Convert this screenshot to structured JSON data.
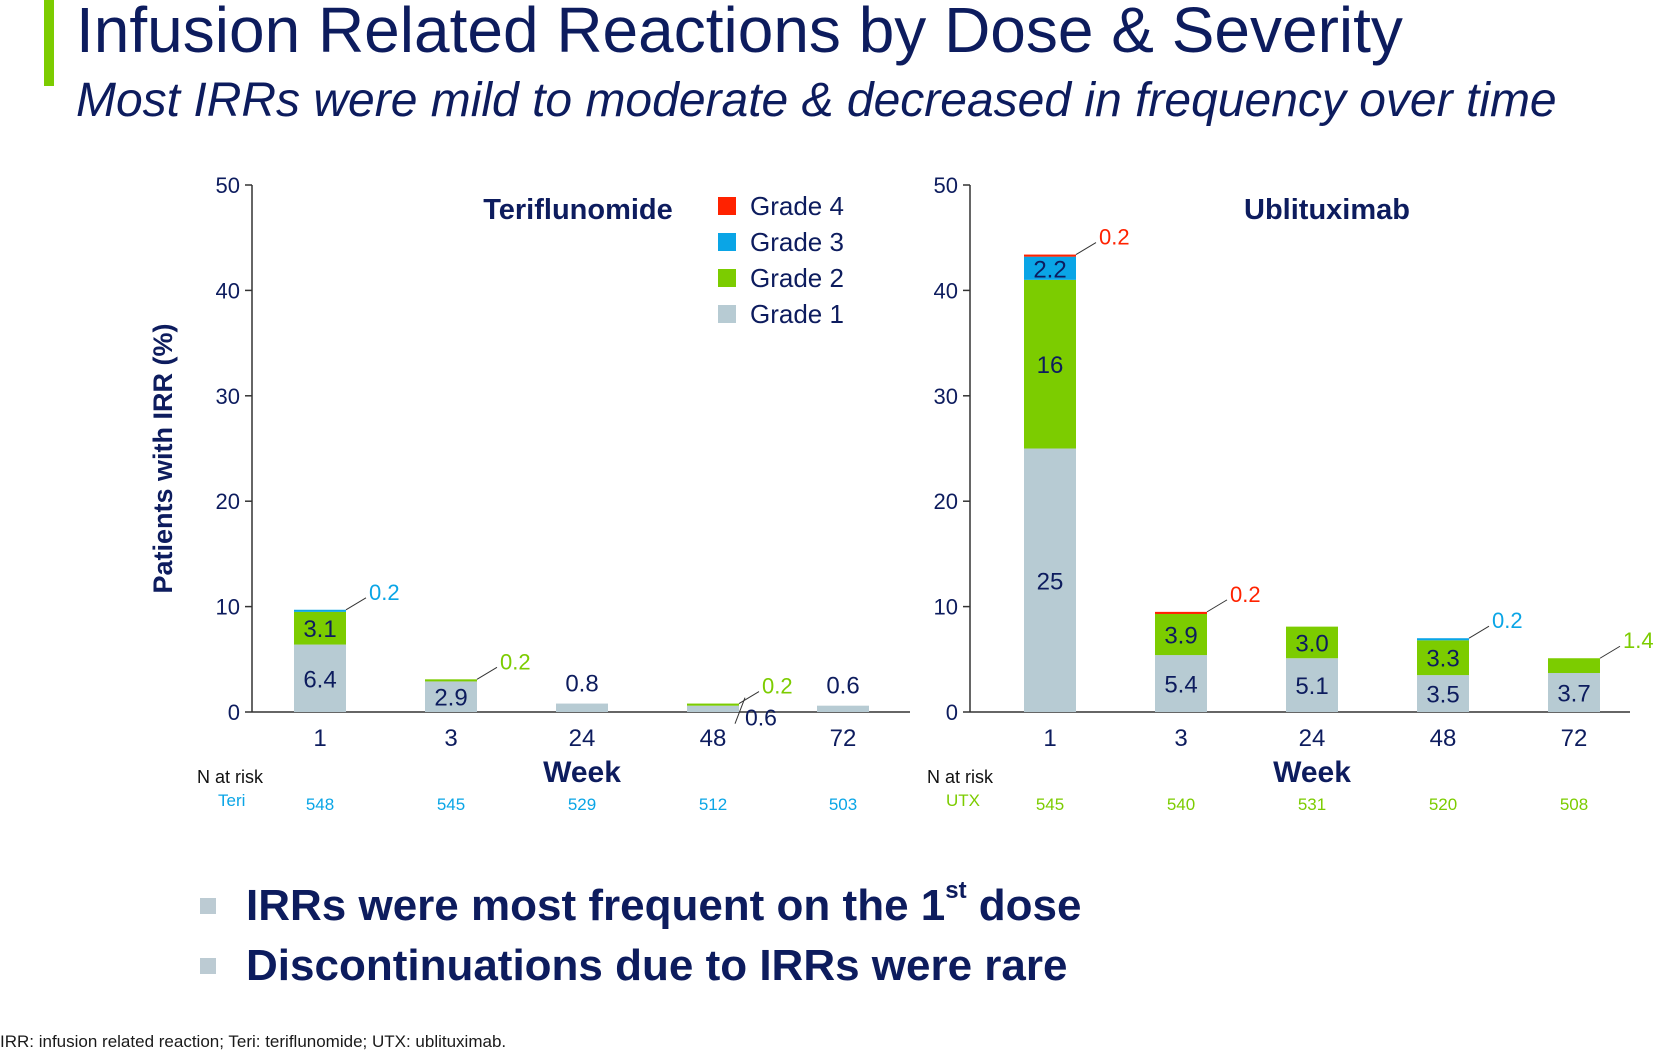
{
  "slide": {
    "title": "Infusion Related Reactions by Dose & Severity",
    "subtitle": "Most IRRs were mild to moderate & decreased in frequency over time",
    "accent_color": "#7ccc00",
    "text_color": "#0d1c5e",
    "bullets": [
      {
        "text": "IRRs were most frequent on the 1",
        "sup": "st",
        "suffix": " dose"
      },
      {
        "text": "Discontinuations due to IRRs were rare",
        "sup": "",
        "suffix": ""
      }
    ],
    "bullet_color": "#bccbd3",
    "footnote": "IRR: infusion related reaction; Teri: teriflunomide; UTX: ublituximab."
  },
  "chart_data": [
    {
      "type": "bar",
      "stacked": true,
      "title": "Teriflunomide",
      "xlabel": "Week",
      "ylabel": "Patients with IRR (%)",
      "categories": [
        "1",
        "3",
        "24",
        "48",
        "72"
      ],
      "ylim": [
        0,
        50
      ],
      "yticks": [
        0,
        10,
        20,
        30,
        40,
        50
      ],
      "legend_position": "top-right",
      "series": [
        {
          "name": "Grade 1",
          "color": "#b7cbd3",
          "values": [
            6.4,
            2.9,
            0.8,
            0.6,
            0.6
          ]
        },
        {
          "name": "Grade 2",
          "color": "#7ccc00",
          "values": [
            3.1,
            0.2,
            0,
            0.2,
            0
          ]
        },
        {
          "name": "Grade 3",
          "color": "#0aa5e6",
          "values": [
            0.2,
            0,
            0,
            0,
            0
          ]
        },
        {
          "name": "Grade 4",
          "color": "#ff2200",
          "values": [
            0,
            0,
            0,
            0,
            0
          ]
        }
      ],
      "data_labels": [
        {
          "cat": 0,
          "series": 0,
          "text": "6.4",
          "style": "inside"
        },
        {
          "cat": 0,
          "series": 1,
          "text": "3.1",
          "style": "inside"
        },
        {
          "cat": 0,
          "series": 2,
          "text": "0.2",
          "style": "callout"
        },
        {
          "cat": 1,
          "series": 0,
          "text": "2.9",
          "style": "inside"
        },
        {
          "cat": 1,
          "series": 1,
          "text": "0.2",
          "style": "callout"
        },
        {
          "cat": 2,
          "series": 0,
          "text": "0.8",
          "style": "above"
        },
        {
          "cat": 3,
          "series": 0,
          "text": "0.6",
          "style": "callout-low"
        },
        {
          "cat": 3,
          "series": 1,
          "text": "0.2",
          "style": "callout"
        },
        {
          "cat": 4,
          "series": 0,
          "text": "0.6",
          "style": "above"
        }
      ],
      "n_at_risk": {
        "header": "N at risk",
        "row_label": "Teri",
        "color": "#0aa5e6",
        "values": [
          "548",
          "545",
          "529",
          "512",
          "503"
        ]
      }
    },
    {
      "type": "bar",
      "stacked": true,
      "title": "Ublituximab",
      "xlabel": "Week",
      "ylabel": "",
      "categories": [
        "1",
        "3",
        "24",
        "48",
        "72"
      ],
      "ylim": [
        0,
        50
      ],
      "yticks": [
        0,
        10,
        20,
        30,
        40,
        50
      ],
      "series": [
        {
          "name": "Grade 1",
          "color": "#b7cbd3",
          "values": [
            25,
            5.4,
            5.1,
            3.5,
            3.7
          ]
        },
        {
          "name": "Grade 2",
          "color": "#7ccc00",
          "values": [
            16,
            3.9,
            3.0,
            3.3,
            1.4
          ]
        },
        {
          "name": "Grade 3",
          "color": "#0aa5e6",
          "values": [
            2.2,
            0,
            0,
            0.2,
            0
          ]
        },
        {
          "name": "Grade 4",
          "color": "#ff2200",
          "values": [
            0.2,
            0.2,
            0,
            0,
            0
          ]
        }
      ],
      "data_labels": [
        {
          "cat": 0,
          "series": 0,
          "text": "25",
          "style": "inside"
        },
        {
          "cat": 0,
          "series": 1,
          "text": "16",
          "style": "inside"
        },
        {
          "cat": 0,
          "series": 2,
          "text": "2.2",
          "style": "inside"
        },
        {
          "cat": 0,
          "series": 3,
          "text": "0.2",
          "style": "callout"
        },
        {
          "cat": 1,
          "series": 0,
          "text": "5.4",
          "style": "inside"
        },
        {
          "cat": 1,
          "series": 1,
          "text": "3.9",
          "style": "inside"
        },
        {
          "cat": 1,
          "series": 3,
          "text": "0.2",
          "style": "callout"
        },
        {
          "cat": 2,
          "series": 0,
          "text": "5.1",
          "style": "inside"
        },
        {
          "cat": 2,
          "series": 1,
          "text": "3.0",
          "style": "inside"
        },
        {
          "cat": 3,
          "series": 0,
          "text": "3.5",
          "style": "inside"
        },
        {
          "cat": 3,
          "series": 1,
          "text": "3.3",
          "style": "inside"
        },
        {
          "cat": 3,
          "series": 2,
          "text": "0.2",
          "style": "callout"
        },
        {
          "cat": 4,
          "series": 0,
          "text": "3.7",
          "style": "inside"
        },
        {
          "cat": 4,
          "series": 1,
          "text": "1.4",
          "style": "callout"
        }
      ],
      "n_at_risk": {
        "header": "N at risk",
        "row_label": "UTX",
        "color": "#7ccc00",
        "values": [
          "545",
          "540",
          "531",
          "520",
          "508"
        ]
      }
    }
  ]
}
